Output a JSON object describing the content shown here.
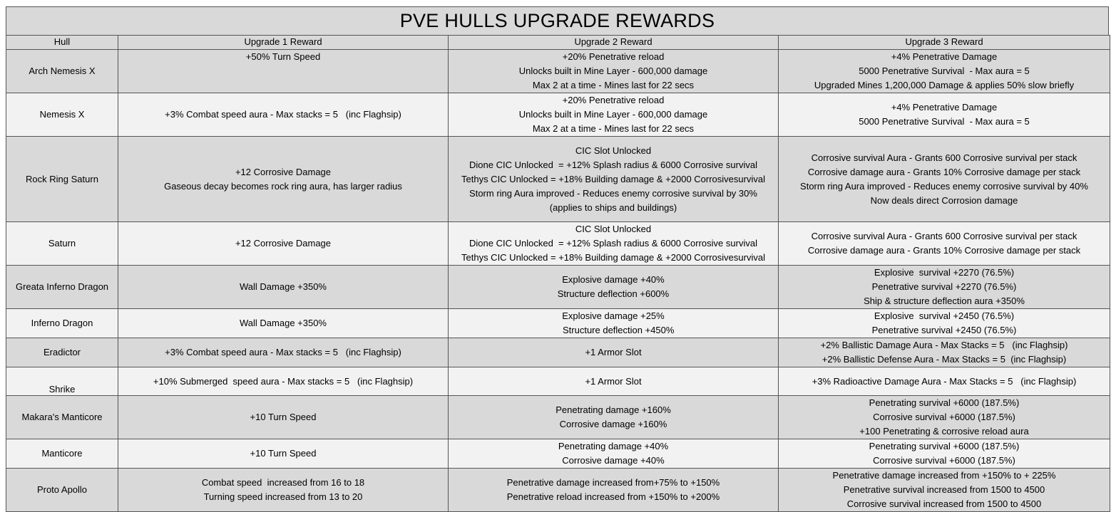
{
  "title": "PVE HULLS UPGRADE REWARDS",
  "headers": [
    "Hull",
    "Upgrade 1 Reward",
    "Upgrade 2 Reward",
    "Upgrade 3 Reward"
  ],
  "rows": [
    {
      "hull": "Arch Nemesis X",
      "u1": [
        "+50% Turn Speed"
      ],
      "u2": [
        "+20% Penetrative reload",
        "Unlocks built in Mine Layer - 600,000 damage",
        "Max 2 at a time - Mines last for 22 secs"
      ],
      "u3": [
        "+4% Penetrative Damage",
        "5000 Penetrative Survival  - Max aura = 5",
        "Upgraded Mines 1,200,000 Damage & applies 50% slow briefly"
      ]
    },
    {
      "hull": "Nemesis X",
      "u1": [
        "+3% Combat speed aura - Max stacks = 5   (inc Flaghsip)"
      ],
      "u2": [
        "+20% Penetrative reload",
        "Unlocks built in Mine Layer - 600,000 damage",
        "Max 2 at a time - Mines last for 22 secs"
      ],
      "u3": [
        "+4% Penetrative Damage",
        "5000 Penetrative Survival  - Max aura = 5"
      ]
    },
    {
      "hull": "Rock Ring Saturn",
      "u1": [
        "+12 Corrosive Damage",
        "Gaseous decay becomes rock ring aura, has larger radius"
      ],
      "u2": [
        "CIC Slot Unlocked",
        "Dione CIC Unlocked  = +12% Splash radius & 6000 Corrosive survival",
        "Tethys CIC Unlocked = +18% Building damage & +2000 Corrosivesurvival",
        "Storm ring Aura improved - Reduces enemy corrosive survival by 30%",
        "(applies to ships and buildings)"
      ],
      "u3": [
        "Corrosive survival Aura - Grants 600 Corrosive survival per stack",
        "Corrosive damage aura - Grants 10% Corrosive damage per stack",
        "Storm ring Aura improved - Reduces enemy corrosive survival by 40%",
        "Now deals direct Corrosion damage"
      ]
    },
    {
      "hull": "Saturn",
      "u1": [
        "+12 Corrosive Damage"
      ],
      "u2": [
        "CIC Slot Unlocked",
        "Dione CIC Unlocked  = +12% Splash radius & 6000 Corrosive survival",
        "Tethys CIC Unlocked = +18% Building damage & +2000 Corrosivesurvival"
      ],
      "u3": [
        "Corrosive survival Aura - Grants 600 Corrosive survival per stack",
        "Corrosive damage aura - Grants 10% Corrosive damage per stack"
      ]
    },
    {
      "hull": "Greata Inferno Dragon",
      "u1": [
        "Wall Damage +350%"
      ],
      "u2": [
        "Explosive damage +40%",
        "Structure deflection +600%"
      ],
      "u3": [
        "Explosive  survival +2270 (76.5%)",
        "Penetrative survival +2270 (76.5%)",
        "Ship & structure deflection aura +350%"
      ]
    },
    {
      "hull": "Inferno Dragon",
      "u1": [
        "Wall Damage +350%"
      ],
      "u2": [
        "Explosive damage +25%",
        "    Structure deflection +450%"
      ],
      "u3": [
        "Explosive  survival +2450 (76.5%)",
        "Penetrative survival +2450 (76.5%)"
      ]
    },
    {
      "hull": "Eradictor",
      "u1": [
        "+3% Combat speed aura - Max stacks = 5   (inc Flaghsip)"
      ],
      "u2": [
        "+1 Armor Slot"
      ],
      "u3": [
        "+2% Ballistic Damage Aura - Max Stacks = 5   (inc Flaghsip)",
        "+2% Ballistic Defense Aura - Max Stacks = 5  (inc Flaghsip)"
      ]
    },
    {
      "hull": "Shrike",
      "u1": [
        "+10% Submerged  speed aura - Max stacks = 5   (inc Flaghsip)"
      ],
      "u2": [
        "+1 Armor Slot"
      ],
      "u3": [
        "+3% Radioactive Damage Aura - Max Stacks = 5   (inc Flaghsip)"
      ]
    },
    {
      "hull": "Makara's Manticore",
      "u1": [
        "+10 Turn Speed"
      ],
      "u2": [
        "Penetrating damage +160%",
        "Corrosive damage +160%"
      ],
      "u3": [
        "Penetrating survival +6000 (187.5%)",
        "Corrosive survival +6000 (187.5%)",
        "+100 Penetrating & corrosive reload aura"
      ]
    },
    {
      "hull": "Manticore",
      "u1": [
        "+10 Turn Speed"
      ],
      "u2": [
        "Penetrating damage +40%",
        "Corrosive damage +40%"
      ],
      "u3": [
        "Penetrating survival +6000 (187.5%)",
        "Corrosive survival +6000 (187.5%)"
      ]
    },
    {
      "hull": "Proto Apollo",
      "u1": [
        "Combat speed  increased from 16 to 18",
        "Turning speed increased from 13 to 20"
      ],
      "u2": [
        "Penetrative damage increased from+75% to +150%",
        "Penetrative reload increased from +150% to +200%"
      ],
      "u3": [
        "Penetrative damage increased from +150% to + 225%",
        "Penetrative survival increased from 1500 to 4500",
        "Corrosive survival increased from 1500 to 4500"
      ]
    }
  ]
}
